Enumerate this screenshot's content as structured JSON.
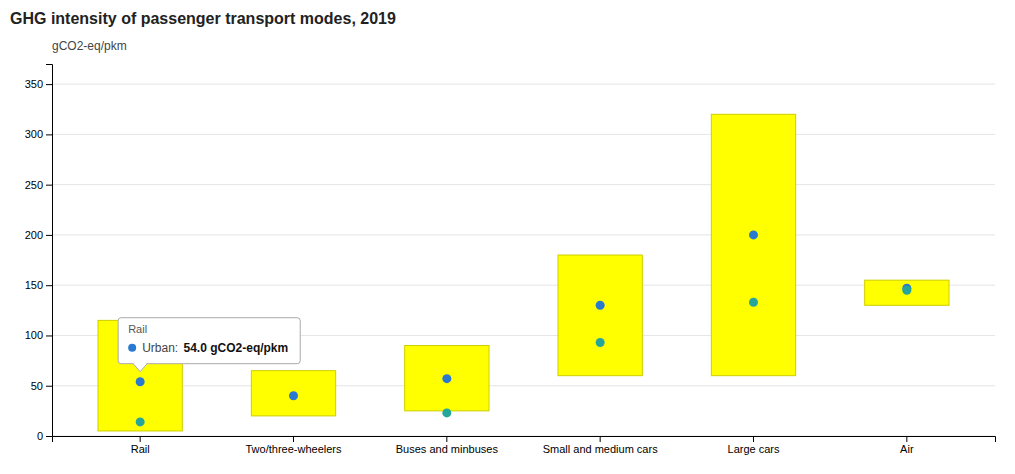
{
  "chart_data": {
    "type": "bar",
    "title": "GHG intensity of passenger transport modes, 2019",
    "ylabel": "gCO2-eq/pkm",
    "categories": [
      "Rail",
      "Two/three-wheelers",
      "Buses and minbuses",
      "Small and medium cars",
      "Large cars",
      "Air"
    ],
    "series": [
      {
        "type": "bar",
        "color": "#FFFF00",
        "low": [
          5,
          20,
          25,
          60,
          60,
          130
        ],
        "high": [
          115,
          65,
          90,
          180,
          320,
          155
        ]
      },
      {
        "type": "scatter",
        "color": "#2979d0",
        "values": [
          54,
          40,
          57,
          130,
          200,
          147
        ]
      },
      {
        "type": "scatter",
        "color": "#26A69A",
        "values": [
          14,
          null,
          23,
          93,
          133,
          145
        ]
      }
    ],
    "annotations": [
      "Rail",
      "Urban: ",
      "54.0 gCO2-eq/pkm"
    ],
    "ylim": [
      0,
      370
    ],
    "yticks": [
      0,
      50,
      100,
      150,
      200,
      250,
      300,
      350
    ],
    "grid": true
  }
}
